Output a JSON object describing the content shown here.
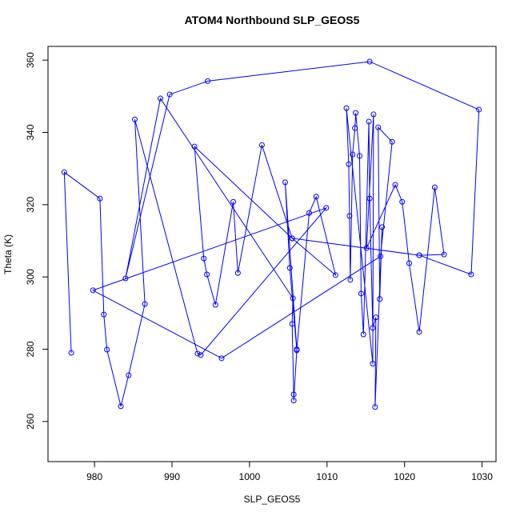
{
  "chart_data": {
    "type": "line",
    "title": "ATOM4 Northbound SLP_GEOS5",
    "x_label": "SLP_GEOS5",
    "y_label": "Theta (K)",
    "color": "#0000ff",
    "xlim": [
      974.0,
      1031.8
    ],
    "ylim": [
      248.9,
      363.8
    ],
    "xticks": [
      980,
      990,
      1000,
      1010,
      1020,
      1030
    ],
    "yticks": [
      260,
      280,
      300,
      320,
      340,
      360
    ],
    "x": [
      977.0,
      976.1,
      980.7,
      981.2,
      981.6,
      983.4,
      984.4,
      986.5,
      985.2,
      993.3,
      993.7,
      1009.9,
      979.8,
      996.4,
      1016.9,
      1018.4,
      1016.6,
      1016.8,
      1017.1,
      1016.2,
      1016.3,
      1015.9,
      1015.5,
      1015.4,
      1014.7,
      1014.4,
      1014.2,
      1013.7,
      1013.6,
      1013.3,
      1013.0,
      1012.9,
      1012.8,
      1012.5,
      1015.9,
      1016.0,
      1015.1,
      1018.8,
      1019.7,
      1020.6,
      1021.9,
      1023.9,
      1025.1,
      1021.9,
      1028.6,
      1029.6,
      1015.5,
      994.6,
      989.7,
      984.0,
      988.5,
      1005.6,
      1005.5,
      1005.7,
      1005.7,
      1006.1,
      1005.2,
      1004.6,
      1006.1,
      1007.7,
      1008.6,
      1011.1,
      1005.5,
      992.9,
      994.1,
      994.5,
      995.6,
      997.9,
      998.5,
      1001.6,
      1005.5,
      1021.9
    ],
    "y": [
      279.0,
      329.0,
      321.7,
      289.6,
      279.9,
      264.2,
      272.8,
      292.5,
      343.6,
      278.8,
      278.4,
      319.1,
      296.3,
      277.5,
      305.7,
      337.4,
      341.4,
      293.9,
      313.8,
      264.0,
      288.8,
      285.9,
      321.7,
      343.0,
      284.1,
      295.4,
      333.5,
      345.4,
      341.2,
      333.9,
      299.2,
      316.9,
      331.2,
      346.7,
      276.0,
      345.0,
      308.0,
      325.5,
      320.8,
      303.8,
      284.8,
      324.8,
      306.2,
      306.0,
      300.7,
      346.3,
      359.6,
      354.2,
      350.5,
      299.6,
      349.4,
      294.1,
      287.0,
      267.5,
      265.8,
      279.7,
      302.5,
      326.2,
      280.0,
      317.7,
      322.2,
      300.5,
      310.7,
      336.1,
      305.1,
      300.7,
      292.3,
      320.8,
      301.1,
      336.5,
      310.7,
      306.0
    ]
  }
}
